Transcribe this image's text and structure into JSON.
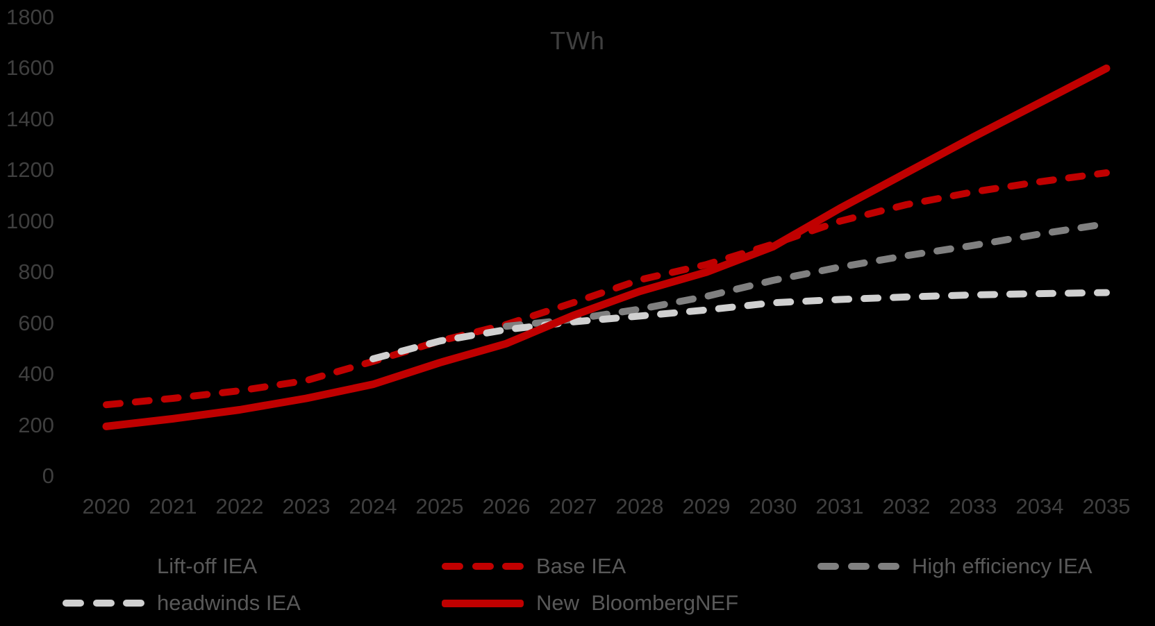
{
  "background_color": "#000000",
  "chart_data": {
    "type": "line",
    "title": "TWh",
    "xlabel": "",
    "ylabel": "",
    "grid": false,
    "legend_position": "bottom",
    "x": [
      2020,
      2021,
      2022,
      2023,
      2024,
      2025,
      2026,
      2027,
      2028,
      2029,
      2030,
      2031,
      2032,
      2033,
      2034,
      2035
    ],
    "y_axis": {
      "min": 0,
      "max": 1800,
      "step": 200,
      "ticks": [
        0,
        200,
        400,
        600,
        800,
        1000,
        1200,
        1400,
        1600,
        1800
      ]
    },
    "series": [
      {
        "name": "Lift-off IEA",
        "color": "#000000",
        "line_style": "dashed",
        "note": "line and legend marker are black and invisible on the black background",
        "values": null
      },
      {
        "name": "Base IEA",
        "color": "#c00000",
        "line_style": "dashed",
        "values": [
          280,
          305,
          335,
          375,
          450,
          530,
          595,
          680,
          770,
          830,
          910,
          1000,
          1065,
          1115,
          1155,
          1190
        ]
      },
      {
        "name": "High efficiency IEA",
        "color": "#808080",
        "line_style": "dashed",
        "values": [
          null,
          null,
          null,
          null,
          null,
          null,
          588,
          615,
          655,
          705,
          768,
          820,
          865,
          905,
          950,
          990
        ]
      },
      {
        "name": "headwinds IEA",
        "color": "#d0d0d0",
        "line_style": "dashed",
        "values": [
          null,
          null,
          null,
          null,
          460,
          530,
          575,
          605,
          628,
          652,
          680,
          693,
          703,
          711,
          716,
          720
        ]
      },
      {
        "name": "New  BloombergNEF",
        "color": "#c00000",
        "line_style": "solid",
        "values": [
          195,
          225,
          260,
          305,
          360,
          445,
          520,
          630,
          725,
          800,
          900,
          1050,
          1190,
          1330,
          1465,
          1600
        ]
      }
    ]
  },
  "legend": {
    "items": [
      {
        "label": "Lift-off IEA",
        "row": 0,
        "col": 0,
        "style": "dashed",
        "color": "#000000"
      },
      {
        "label": "Base IEA",
        "row": 0,
        "col": 1,
        "style": "dashed",
        "color": "#c00000"
      },
      {
        "label": "High efficiency IEA",
        "row": 0,
        "col": 2,
        "style": "dashed",
        "color": "#808080"
      },
      {
        "label": "headwinds IEA",
        "row": 1,
        "col": 0,
        "style": "dashed",
        "color": "#d0d0d0"
      },
      {
        "label": "New  BloombergNEF",
        "row": 1,
        "col": 1,
        "style": "solid",
        "color": "#c00000"
      }
    ]
  }
}
